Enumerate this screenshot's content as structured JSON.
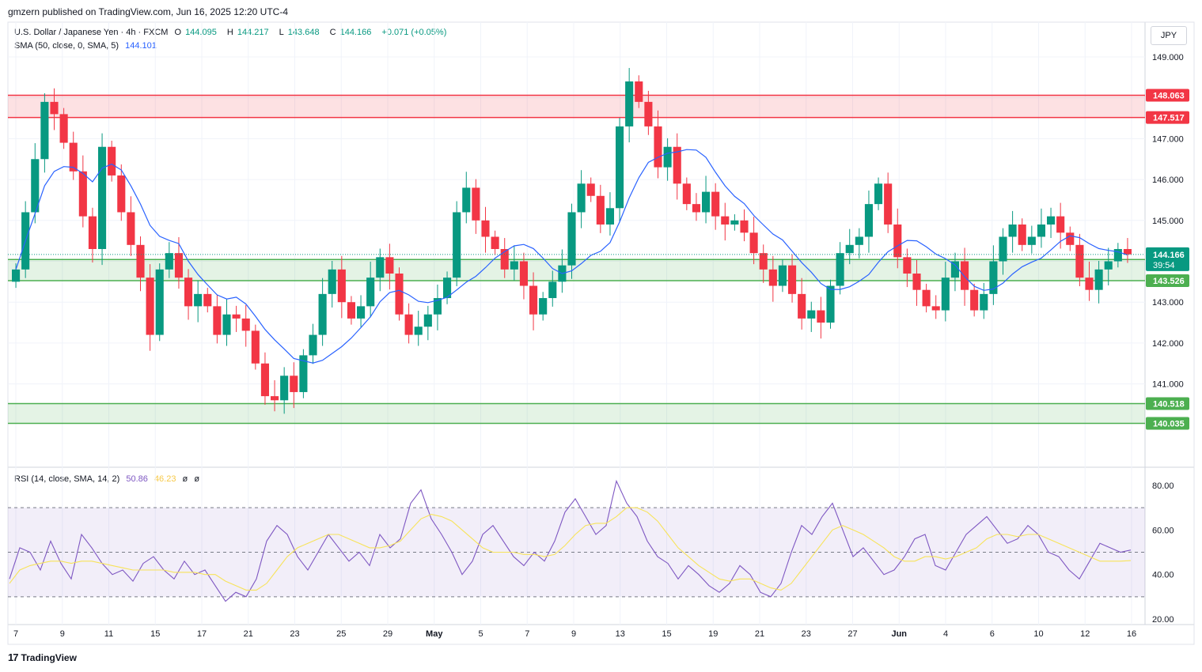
{
  "header": {
    "published": "gmzern published on TradingView.com, Jun 16, 2025 12:20 UTC-4",
    "symbol": "U.S. Dollar / Japanese Yen · 4h · FXCM",
    "open_label": "O",
    "open": "144.095",
    "high_label": "H",
    "high": "144.217",
    "low_label": "L",
    "low": "143.648",
    "close_label": "C",
    "close": "144.166",
    "change": "+0.071 (+0.05%)",
    "sma_label": "SMA (50, close, 0, SMA, 5)",
    "sma_value": "144.101",
    "rsi_label": "RSI (14, close, SMA, 14, 2)",
    "rsi_value": "50.86",
    "rsi_ma_value": "46.23",
    "rsi_extra1": "ø",
    "rsi_extra2": "ø"
  },
  "currency": "JPY",
  "footer": {
    "logo_mark": "17",
    "brand": "TradingView"
  },
  "colors": {
    "up": "#089981",
    "down": "#f23645",
    "sma": "#2962ff",
    "rsi": "#7e57c2",
    "rsi_ma": "#f7e35a",
    "red_zone": "#f23645",
    "green_zone": "#4caf50"
  },
  "chart_data": [
    {
      "type": "candlestick",
      "symbol": "USDJPY",
      "timeframe": "4h",
      "ylim": [
        139.0,
        149.5
      ],
      "y_ticks": [
        "149.000",
        "148.000",
        "147.000",
        "146.000",
        "145.000",
        "144.000",
        "143.000",
        "142.000",
        "141.000"
      ],
      "x_ticks": [
        "7",
        "9",
        "11",
        "15",
        "17",
        "21",
        "23",
        "25",
        "29",
        "May",
        "5",
        "7",
        "9",
        "13",
        "15",
        "19",
        "21",
        "23",
        "27",
        "Jun",
        "4",
        "6",
        "10",
        "12",
        "16"
      ],
      "price_labels": {
        "last": "144.166",
        "countdown": "39:54"
      },
      "zones": [
        {
          "color": "red",
          "upper": 148.063,
          "lower": 147.517,
          "upper_label": "148.063",
          "lower_label": "147.517"
        },
        {
          "color": "green",
          "upper": 144.043,
          "lower": 143.526,
          "upper_label": "144.043",
          "lower_label": "143.526"
        },
        {
          "color": "green",
          "upper": 140.518,
          "lower": 140.035,
          "upper_label": "140.518",
          "lower_label": "140.035"
        }
      ],
      "closes": [
        143.8,
        145.2,
        146.5,
        147.9,
        147.6,
        146.9,
        146.2,
        145.1,
        144.3,
        146.8,
        146.1,
        145.2,
        144.4,
        143.6,
        142.2,
        143.8,
        144.2,
        143.6,
        142.9,
        143.2,
        142.9,
        142.2,
        142.7,
        142.6,
        142.3,
        141.5,
        140.7,
        140.6,
        141.2,
        140.8,
        141.7,
        142.2,
        143.2,
        143.8,
        143.0,
        142.6,
        142.9,
        143.6,
        144.1,
        143.7,
        142.7,
        142.2,
        142.4,
        142.7,
        143.1,
        143.6,
        145.2,
        145.8,
        145.0,
        144.6,
        144.3,
        143.8,
        144.0,
        143.4,
        142.7,
        143.1,
        143.5,
        143.9,
        145.2,
        145.9,
        145.6,
        144.9,
        145.3,
        147.3,
        148.4,
        147.9,
        147.3,
        146.3,
        146.8,
        145.9,
        145.4,
        145.2,
        145.7,
        145.1,
        144.9,
        145.0,
        144.7,
        144.2,
        143.8,
        143.4,
        143.9,
        143.2,
        142.6,
        142.8,
        142.5,
        143.4,
        144.2,
        144.4,
        144.6,
        145.4,
        145.9,
        144.9,
        144.1,
        143.7,
        143.3,
        142.9,
        142.8,
        143.6,
        144.0,
        143.3,
        142.8,
        143.2,
        144.0,
        144.6,
        144.9,
        144.4,
        144.6,
        144.9,
        145.1,
        144.7,
        144.4,
        143.6,
        143.3,
        143.8,
        144.0,
        144.3,
        144.17
      ],
      "sma_closes_series": "SMA (50, close, 0, SMA, 5)"
    },
    {
      "type": "line",
      "title": "RSI (14, close, SMA, 14, 2)",
      "ylim": [
        20,
        85
      ],
      "y_ticks": [
        "80.00",
        "60.00",
        "40.00",
        "20.00"
      ],
      "bands": {
        "upper": 70,
        "middle": 50,
        "lower": 30
      },
      "series": [
        {
          "name": "RSI",
          "values": [
            38,
            52,
            50,
            42,
            55,
            45,
            38,
            58,
            52,
            45,
            40,
            42,
            37,
            45,
            48,
            42,
            38,
            46,
            40,
            42,
            35,
            28,
            32,
            30,
            38,
            55,
            62,
            58,
            48,
            42,
            50,
            58,
            52,
            46,
            50,
            44,
            58,
            52,
            56,
            72,
            78,
            65,
            58,
            50,
            40,
            46,
            58,
            62,
            55,
            48,
            44,
            50,
            46,
            55,
            68,
            74,
            66,
            58,
            62,
            82,
            72,
            66,
            55,
            48,
            45,
            38,
            44,
            40,
            35,
            32,
            36,
            44,
            40,
            32,
            30,
            36,
            50,
            62,
            58,
            66,
            72,
            60,
            48,
            52,
            46,
            40,
            42,
            48,
            56,
            58,
            44,
            42,
            50,
            58,
            62,
            66,
            60,
            54,
            56,
            62,
            58,
            50,
            48,
            42,
            38,
            46,
            54,
            52,
            50,
            51
          ]
        },
        {
          "name": "RSI-based MA",
          "values": [
            36,
            42,
            44,
            45,
            46,
            46,
            45,
            46,
            46,
            45,
            44,
            43,
            42,
            42,
            42,
            42,
            41,
            41,
            41,
            40,
            40,
            37,
            35,
            33,
            33,
            36,
            42,
            48,
            52,
            54,
            56,
            58,
            58,
            56,
            54,
            52,
            52,
            53,
            55,
            60,
            65,
            67,
            66,
            64,
            60,
            56,
            52,
            50,
            50,
            50,
            49,
            49,
            48,
            49,
            53,
            58,
            62,
            63,
            63,
            66,
            70,
            70,
            68,
            64,
            58,
            52,
            48,
            44,
            41,
            38,
            37,
            38,
            38,
            36,
            34,
            33,
            36,
            42,
            48,
            54,
            60,
            62,
            60,
            58,
            55,
            52,
            48,
            46,
            46,
            48,
            48,
            47,
            48,
            50,
            52,
            56,
            58,
            58,
            57,
            58,
            58,
            56,
            54,
            52,
            50,
            48,
            46,
            46,
            46,
            46.23
          ]
        }
      ]
    }
  ]
}
